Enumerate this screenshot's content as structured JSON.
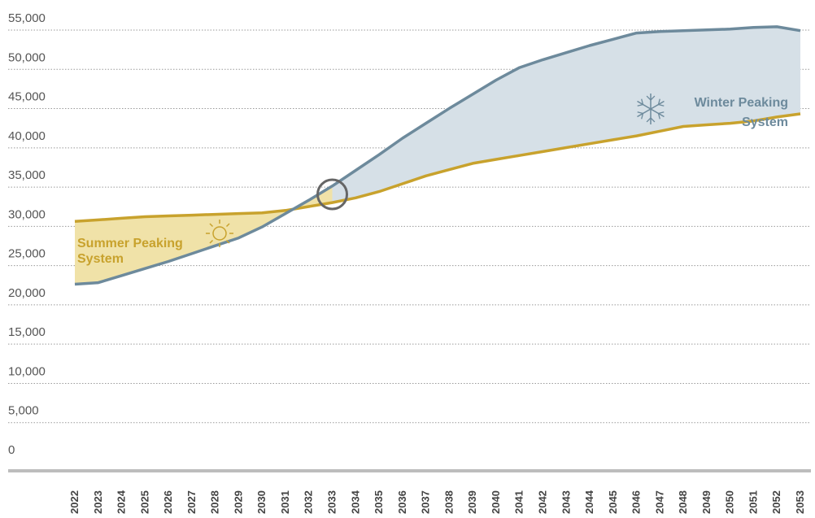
{
  "chart_data": {
    "type": "area",
    "title": "",
    "xlabel": "",
    "ylabel": "",
    "ylim": [
      0,
      55000
    ],
    "y_ticks": [
      0,
      5000,
      10000,
      15000,
      20000,
      25000,
      30000,
      35000,
      40000,
      45000,
      50000,
      55000
    ],
    "y_tick_labels": [
      "0",
      "5,000",
      "10,000",
      "15,000",
      "20,000",
      "25,000",
      "30,000",
      "35,000",
      "40,000",
      "45,000",
      "50,000",
      "55,000"
    ],
    "grid": true,
    "x": [
      "2022",
      "2023",
      "2024",
      "2025",
      "2026",
      "2027",
      "2028",
      "2029",
      "2030",
      "2031",
      "2032",
      "2033",
      "2034",
      "2035",
      "2036",
      "2037",
      "2038",
      "2039",
      "2040",
      "2041",
      "2042",
      "2043",
      "2044",
      "2045",
      "2046",
      "2047",
      "2048",
      "2049",
      "2050",
      "2051",
      "2052",
      "2053"
    ],
    "series": [
      {
        "key": "summer",
        "color": "#c8a22d",
        "fill": "#f0e2a8",
        "values": [
          29800,
          30000,
          30200,
          30400,
          30500,
          30600,
          30700,
          30800,
          30900,
          31200,
          31700,
          32200,
          32800,
          33600,
          34600,
          35600,
          36400,
          37200,
          37700,
          38200,
          38700,
          39200,
          39700,
          40200,
          40700,
          41300,
          41900,
          42100,
          42300,
          42600,
          43100,
          43500
        ]
      },
      {
        "key": "winter",
        "color": "#6d8a9c",
        "fill": "#d6e0e7",
        "values": [
          21800,
          22000,
          22900,
          23800,
          24700,
          25700,
          26700,
          27700,
          29100,
          30800,
          32500,
          34300,
          36300,
          38300,
          40400,
          42300,
          44200,
          46000,
          47800,
          49400,
          50400,
          51300,
          52200,
          53000,
          53800,
          54000,
          54100,
          54200,
          54300,
          54500,
          54600,
          54100
        ]
      }
    ],
    "crossover_year": "2033",
    "annotations": {
      "summer_label_line1": "Summer Peaking",
      "summer_label_line2": "System",
      "winter_label_line1": "Winter Peaking",
      "winter_label_line2": "System"
    },
    "icons": {
      "summer": "sun-icon",
      "winter": "snowflake-icon",
      "crossover": "crossover-circle-icon"
    }
  }
}
